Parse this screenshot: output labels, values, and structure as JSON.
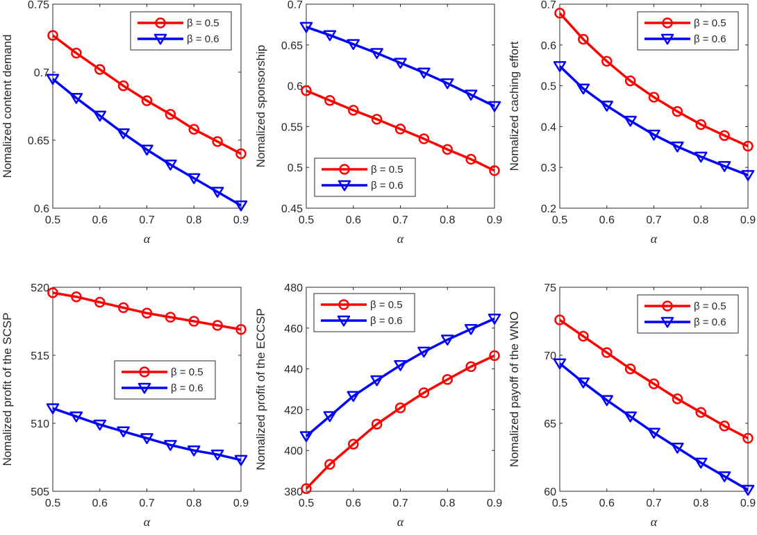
{
  "colors": {
    "red": "#ff0000",
    "blue": "#0000ff",
    "axis": "#262626"
  },
  "chart_data": [
    {
      "type": "line",
      "xlabel": "α",
      "ylabel": "Nomalized content demand",
      "xlim": [
        0.5,
        0.9
      ],
      "ylim": [
        0.6,
        0.75
      ],
      "xticks": [
        "0.5",
        "0.6",
        "0.7",
        "0.8",
        "0.9"
      ],
      "yticks": [
        "0.6",
        "0.65",
        "0.7",
        "0.75"
      ],
      "legend_placement": "top-right",
      "grid": false,
      "x": [
        0.5,
        0.55,
        0.6,
        0.65,
        0.7,
        0.75,
        0.8,
        0.85,
        0.9
      ],
      "series": [
        {
          "name": "β = 0.5",
          "marker": "circle",
          "color": "#ff0000",
          "values": [
            0.727,
            0.714,
            0.702,
            0.69,
            0.679,
            0.669,
            0.658,
            0.649,
            0.64
          ]
        },
        {
          "name": "β = 0.6",
          "marker": "triangle-down",
          "color": "#0000ff",
          "values": [
            0.695,
            0.681,
            0.668,
            0.655,
            0.643,
            0.632,
            0.622,
            0.612,
            0.602
          ]
        }
      ]
    },
    {
      "type": "line",
      "xlabel": "α",
      "ylabel": "Nomalized sponsorship",
      "xlim": [
        0.5,
        0.9
      ],
      "ylim": [
        0.45,
        0.7
      ],
      "xticks": [
        "0.5",
        "0.6",
        "0.7",
        "0.8",
        "0.9"
      ],
      "yticks": [
        "0.45",
        "0.5",
        "0.55",
        "0.6",
        "0.65",
        "0.7"
      ],
      "legend_placement": "bottom-left",
      "grid": false,
      "x": [
        0.5,
        0.55,
        0.6,
        0.65,
        0.7,
        0.75,
        0.8,
        0.85,
        0.9
      ],
      "series": [
        {
          "name": "β = 0.5",
          "marker": "circle",
          "color": "#ff0000",
          "values": [
            0.594,
            0.582,
            0.57,
            0.559,
            0.547,
            0.535,
            0.522,
            0.51,
            0.496
          ]
        },
        {
          "name": "β = 0.6",
          "marker": "triangle-down",
          "color": "#0000ff",
          "values": [
            0.672,
            0.662,
            0.651,
            0.64,
            0.628,
            0.616,
            0.603,
            0.589,
            0.575
          ]
        }
      ]
    },
    {
      "type": "line",
      "xlabel": "α",
      "ylabel": "Nomalized caching effort",
      "xlim": [
        0.5,
        0.9
      ],
      "ylim": [
        0.2,
        0.7
      ],
      "xticks": [
        "0.5",
        "0.6",
        "0.7",
        "0.8",
        "0.9"
      ],
      "yticks": [
        "0.2",
        "0.3",
        "0.4",
        "0.5",
        "0.6",
        "0.7"
      ],
      "legend_placement": "top-right",
      "grid": false,
      "x": [
        0.5,
        0.55,
        0.6,
        0.65,
        0.7,
        0.75,
        0.8,
        0.85,
        0.9
      ],
      "series": [
        {
          "name": "β = 0.5",
          "marker": "circle",
          "color": "#ff0000",
          "values": [
            0.678,
            0.614,
            0.56,
            0.512,
            0.472,
            0.437,
            0.405,
            0.378,
            0.352
          ]
        },
        {
          "name": "β = 0.6",
          "marker": "triangle-down",
          "color": "#0000ff",
          "values": [
            0.548,
            0.493,
            0.451,
            0.414,
            0.38,
            0.351,
            0.326,
            0.303,
            0.281
          ]
        }
      ]
    },
    {
      "type": "line",
      "xlabel": "α",
      "ylabel": "Nomalized profit of the SCSP",
      "xlim": [
        0.5,
        0.9
      ],
      "ylim": [
        505,
        520
      ],
      "xticks": [
        "0.5",
        "0.6",
        "0.7",
        "0.8",
        "0.9"
      ],
      "yticks": [
        "505",
        "510",
        "515",
        "520"
      ],
      "legend_placement": "center",
      "grid": false,
      "x": [
        0.5,
        0.55,
        0.6,
        0.65,
        0.7,
        0.75,
        0.8,
        0.85,
        0.9
      ],
      "series": [
        {
          "name": "β = 0.5",
          "marker": "circle",
          "color": "#ff0000",
          "values": [
            519.6,
            519.3,
            518.9,
            518.5,
            518.1,
            517.8,
            517.5,
            517.2,
            516.9
          ]
        },
        {
          "name": "β = 0.6",
          "marker": "triangle-down",
          "color": "#0000ff",
          "values": [
            511.1,
            510.5,
            509.9,
            509.4,
            508.9,
            508.4,
            508.0,
            507.7,
            507.3
          ]
        }
      ]
    },
    {
      "type": "line",
      "xlabel": "α",
      "ylabel": "Nomalized profit of the ECCSP",
      "xlim": [
        0.5,
        0.9
      ],
      "ylim": [
        380,
        480
      ],
      "xticks": [
        "0.5",
        "0.6",
        "0.7",
        "0.8",
        "0.9"
      ],
      "yticks": [
        "380",
        "400",
        "420",
        "440",
        "460",
        "480"
      ],
      "legend_placement": "top-left",
      "grid": false,
      "x": [
        0.5,
        0.55,
        0.6,
        0.65,
        0.7,
        0.75,
        0.8,
        0.85,
        0.9
      ],
      "series": [
        {
          "name": "β = 0.5",
          "marker": "circle",
          "color": "#ff0000",
          "values": [
            381.3,
            393.2,
            403.1,
            412.9,
            420.9,
            428.3,
            434.8,
            441.1,
            446.5
          ]
        },
        {
          "name": "β = 0.6",
          "marker": "triangle-down",
          "color": "#0000ff",
          "values": [
            407.0,
            416.8,
            426.7,
            434.4,
            441.8,
            448.4,
            454.3,
            459.5,
            464.6
          ]
        }
      ]
    },
    {
      "type": "line",
      "xlabel": "α",
      "ylabel": "Nomalized payoff of the WNO",
      "xlim": [
        0.5,
        0.9
      ],
      "ylim": [
        60,
        75
      ],
      "xticks": [
        "0.5",
        "0.6",
        "0.7",
        "0.8",
        "0.9"
      ],
      "yticks": [
        "60",
        "65",
        "70",
        "75"
      ],
      "legend_placement": "top-right",
      "grid": false,
      "x": [
        0.5,
        0.55,
        0.6,
        0.65,
        0.7,
        0.75,
        0.8,
        0.85,
        0.9
      ],
      "series": [
        {
          "name": "β = 0.5",
          "marker": "circle",
          "color": "#ff0000",
          "values": [
            72.6,
            71.4,
            70.2,
            69.0,
            67.9,
            66.8,
            65.8,
            64.8,
            63.9
          ]
        },
        {
          "name": "β = 0.6",
          "marker": "triangle-down",
          "color": "#0000ff",
          "values": [
            69.4,
            68.0,
            66.7,
            65.5,
            64.3,
            63.2,
            62.1,
            61.1,
            60.1
          ]
        }
      ]
    }
  ]
}
